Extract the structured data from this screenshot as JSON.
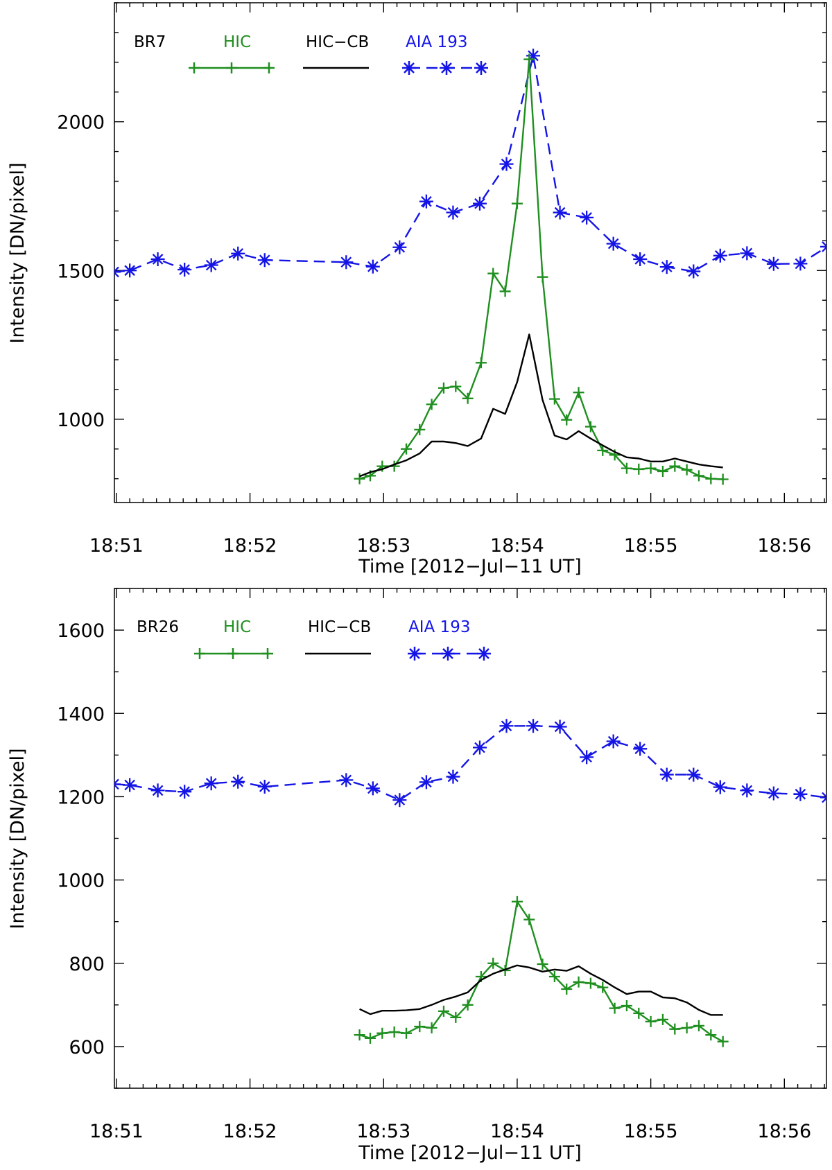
{
  "colors": {
    "hic": "#1f8f1f",
    "hic_cb": "#000000",
    "aia": "#1414e6",
    "axis": "#000000"
  },
  "chart_data": [
    {
      "type": "line",
      "panel": "top",
      "label": "BR7",
      "xlabel": "Time [2012−Jul−11 UT]",
      "ylabel": "Intensity [DN/pixel]",
      "xlim": [
        50.985,
        56.315
      ],
      "ylim": [
        720,
        2400
      ],
      "x_ticks": [
        51,
        52,
        53,
        54,
        55,
        56
      ],
      "x_tick_labels": [
        "18:51",
        "18:52",
        "18:53",
        "18:54",
        "18:55",
        "18:56"
      ],
      "y_ticks": [
        1000,
        1500,
        2000
      ],
      "y_tick_labels": [
        "1000",
        "1500",
        "2000"
      ],
      "legend": [
        "HIC",
        "HIC−CB",
        "AIA 193"
      ],
      "series": [
        {
          "name": "AIA 193",
          "key": "aia",
          "style": "dashed",
          "marker": "asterisk",
          "x": [
            50.98,
            51.1,
            51.31,
            51.51,
            51.71,
            51.91,
            52.11,
            52.72,
            52.92,
            53.12,
            53.32,
            53.52,
            53.72,
            53.92,
            54.12,
            54.32,
            54.52,
            54.72,
            54.92,
            55.12,
            55.32,
            55.52,
            55.72,
            55.92,
            56.12,
            56.32
          ],
          "y": [
            1495,
            1500,
            1538,
            1503,
            1518,
            1557,
            1535,
            1528,
            1513,
            1578,
            1732,
            1695,
            1725,
            1858,
            2222,
            1695,
            1678,
            1590,
            1538,
            1512,
            1497,
            1550,
            1558,
            1522,
            1523,
            1580
          ]
        },
        {
          "name": "HIC",
          "key": "hic",
          "style": "solid",
          "marker": "plus",
          "x": [
            52.82,
            52.9,
            52.99,
            53.08,
            53.17,
            53.27,
            53.36,
            53.45,
            53.54,
            53.63,
            53.73,
            53.82,
            53.91,
            54.0,
            54.09,
            54.19,
            54.28,
            54.37,
            54.46,
            54.55,
            54.64,
            54.73,
            54.82,
            54.91,
            55.0,
            55.09,
            55.18,
            55.27,
            55.36,
            55.45,
            55.54
          ],
          "y": [
            800,
            810,
            842,
            842,
            900,
            965,
            1050,
            1105,
            1110,
            1070,
            1190,
            1490,
            1430,
            1725,
            2210,
            1478,
            1068,
            998,
            1090,
            975,
            895,
            880,
            835,
            832,
            835,
            825,
            842,
            830,
            810,
            800,
            798
          ]
        },
        {
          "name": "HIC−CB",
          "key": "hic_cb",
          "style": "solid",
          "marker": "none",
          "x": [
            52.82,
            52.9,
            52.99,
            53.08,
            53.17,
            53.27,
            53.36,
            53.45,
            53.54,
            53.63,
            53.73,
            53.82,
            53.91,
            54.0,
            54.09,
            54.19,
            54.28,
            54.37,
            54.46,
            54.55,
            54.64,
            54.73,
            54.82,
            54.91,
            55.0,
            55.09,
            55.18,
            55.27,
            55.36,
            55.45,
            55.54
          ],
          "y": [
            808,
            822,
            832,
            848,
            862,
            885,
            925,
            925,
            920,
            910,
            935,
            1035,
            1018,
            1125,
            1285,
            1065,
            945,
            932,
            960,
            935,
            912,
            890,
            872,
            868,
            858,
            858,
            868,
            858,
            848,
            842,
            838
          ]
        }
      ]
    },
    {
      "type": "line",
      "panel": "bottom",
      "label": "BR26",
      "xlabel": "Time [2012−Jul−11 UT]",
      "ylabel": "Intensity [DN/pixel]",
      "xlim": [
        50.985,
        56.315
      ],
      "ylim": [
        500,
        1700
      ],
      "x_ticks": [
        51,
        52,
        53,
        54,
        55,
        56
      ],
      "x_tick_labels": [
        "18:51",
        "18:52",
        "18:53",
        "18:54",
        "18:55",
        "18:56"
      ],
      "y_ticks": [
        600,
        800,
        1000,
        1200,
        1400,
        1600
      ],
      "y_tick_labels": [
        "600",
        "800",
        "1000",
        "1200",
        "1400",
        "1600"
      ],
      "legend": [
        "HIC",
        "HIC−CB",
        "AIA 193"
      ],
      "series": [
        {
          "name": "AIA 193",
          "key": "aia",
          "style": "dashed",
          "marker": "asterisk",
          "x": [
            50.98,
            51.1,
            51.31,
            51.51,
            51.71,
            51.91,
            52.11,
            52.72,
            52.92,
            53.12,
            53.32,
            53.52,
            53.72,
            53.92,
            54.12,
            54.32,
            54.52,
            54.72,
            54.92,
            55.12,
            55.32,
            55.52,
            55.72,
            55.92,
            56.12,
            56.32
          ],
          "y": [
            1230,
            1228,
            1215,
            1212,
            1232,
            1236,
            1224,
            1240,
            1220,
            1192,
            1235,
            1248,
            1318,
            1370,
            1370,
            1368,
            1295,
            1333,
            1315,
            1253,
            1253,
            1223,
            1215,
            1208,
            1206,
            1198
          ]
        },
        {
          "name": "HIC",
          "key": "hic",
          "style": "solid",
          "marker": "plus",
          "x": [
            52.82,
            52.9,
            52.99,
            53.08,
            53.17,
            53.27,
            53.36,
            53.45,
            53.54,
            53.63,
            53.73,
            53.82,
            53.91,
            54.0,
            54.09,
            54.19,
            54.28,
            54.37,
            54.46,
            54.55,
            54.64,
            54.73,
            54.82,
            54.91,
            55.0,
            55.09,
            55.18,
            55.27,
            55.36,
            55.45,
            55.54
          ],
          "y": [
            628,
            620,
            632,
            635,
            632,
            648,
            645,
            685,
            670,
            700,
            768,
            800,
            783,
            948,
            905,
            798,
            768,
            738,
            755,
            752,
            742,
            692,
            698,
            680,
            660,
            665,
            642,
            645,
            650,
            628,
            612
          ]
        },
        {
          "name": "HIC−CB",
          "key": "hic_cb",
          "style": "solid",
          "marker": "none",
          "x": [
            52.82,
            52.9,
            52.99,
            53.08,
            53.17,
            53.27,
            53.36,
            53.45,
            53.54,
            53.63,
            53.73,
            53.82,
            53.91,
            54.0,
            54.09,
            54.19,
            54.28,
            54.37,
            54.46,
            54.55,
            54.64,
            54.73,
            54.82,
            54.91,
            55.0,
            55.09,
            55.18,
            55.27,
            55.36,
            55.45,
            55.54
          ],
          "y": [
            690,
            678,
            686,
            686,
            687,
            690,
            700,
            712,
            720,
            730,
            760,
            775,
            785,
            795,
            790,
            780,
            785,
            782,
            793,
            775,
            760,
            742,
            726,
            732,
            732,
            718,
            716,
            706,
            688,
            676,
            676
          ]
        }
      ]
    }
  ]
}
